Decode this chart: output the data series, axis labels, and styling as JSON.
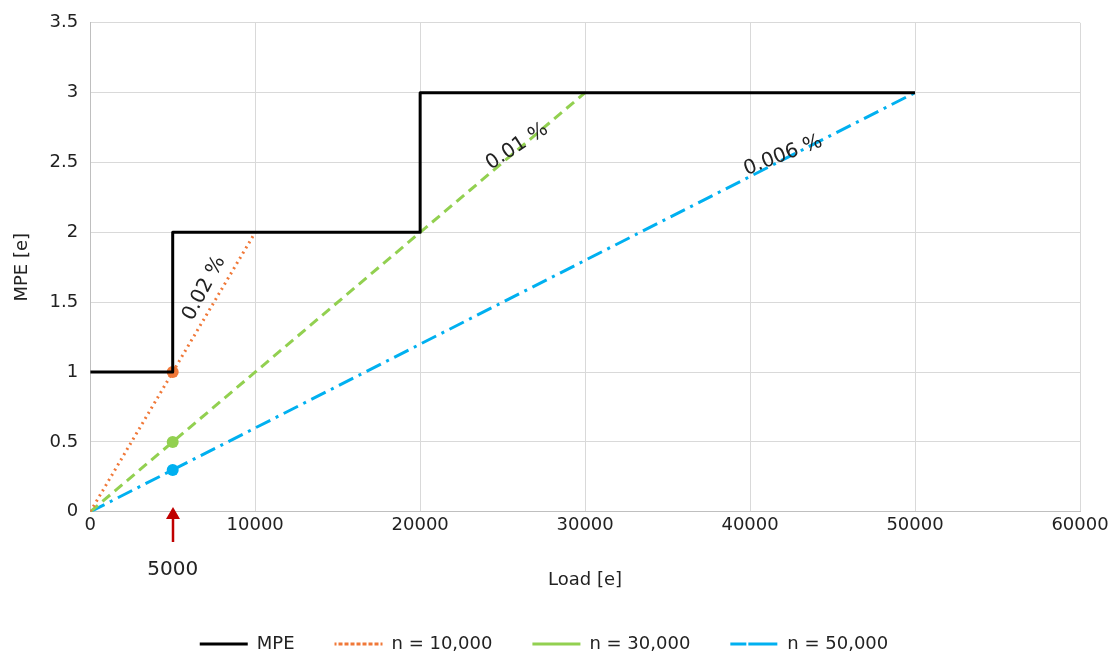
{
  "chart_data": {
    "type": "line",
    "xlabel": "Load [e]",
    "ylabel": "MPE [e]",
    "xlim": [
      0,
      60000
    ],
    "xticks": [
      0,
      10000,
      20000,
      30000,
      40000,
      50000,
      60000
    ],
    "ylim": [
      0,
      3.5
    ],
    "yticks": [
      0,
      0.5,
      1,
      1.5,
      2,
      2.5,
      3,
      3.5
    ],
    "grid": true,
    "legend": "bottom",
    "series": [
      {
        "name": "MPE",
        "type": "line",
        "color": "#000000",
        "line_style": "solid",
        "marker": "none",
        "x": [
          0,
          5000,
          5000,
          20000,
          20000,
          50000
        ],
        "values": [
          1,
          1,
          2,
          2,
          3,
          3
        ]
      },
      {
        "name": "n = 10,000",
        "type": "line",
        "color": "#f07838",
        "line_style": "dotted",
        "marker": "none",
        "x": [
          0,
          10000
        ],
        "values": [
          0,
          2
        ]
      },
      {
        "name": "n = 30,000",
        "type": "line",
        "color": "#92d050",
        "line_style": "dashed",
        "marker": "none",
        "x": [
          0,
          30000
        ],
        "values": [
          0,
          3
        ]
      },
      {
        "name": "n = 50,000",
        "type": "line",
        "color": "#00b0f0",
        "line_style": "dashdot",
        "marker": "none",
        "x": [
          0,
          50000
        ],
        "values": [
          0,
          3
        ]
      },
      {
        "type": "scatter",
        "color": "#f07838",
        "marker": "circle",
        "x": [
          5000
        ],
        "values": [
          1
        ]
      },
      {
        "type": "scatter",
        "color": "#92d050",
        "marker": "circle",
        "x": [
          5000
        ],
        "values": [
          0.5
        ]
      },
      {
        "type": "scatter",
        "color": "#00b0f0",
        "marker": "circle",
        "x": [
          5000
        ],
        "values": [
          0.3
        ]
      }
    ],
    "annotations": [
      {
        "text": "0.02 %",
        "x": 8000,
        "y": 1.6
      },
      {
        "text": "0.01 %",
        "x": 26000,
        "y": 2.6
      },
      {
        "text": "0.006 %",
        "x": 42000,
        "y": 2.55
      },
      {
        "text": "5000",
        "x": 5000,
        "y": 0
      }
    ]
  }
}
